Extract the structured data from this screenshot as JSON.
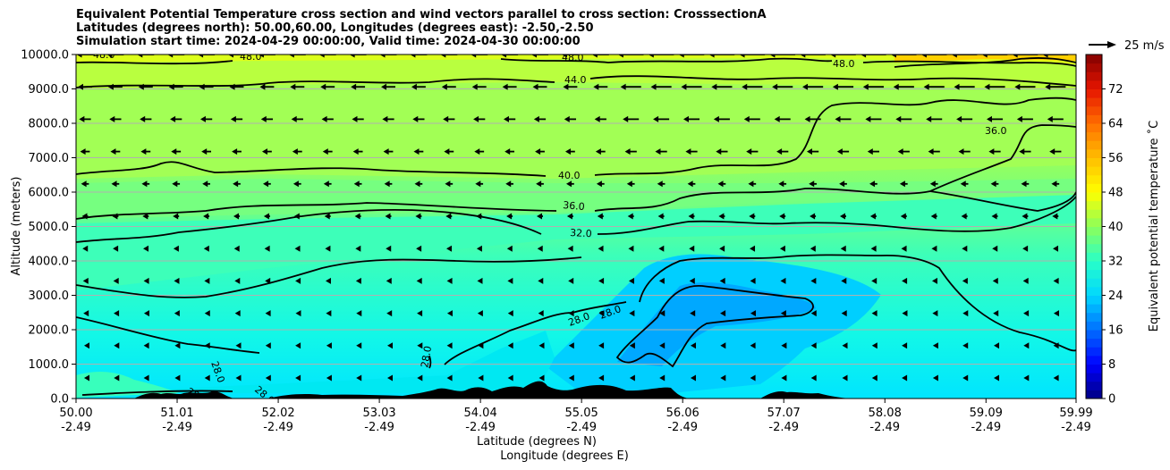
{
  "chart_data": {
    "type": "contour",
    "title_lines": [
      "Equivalent Potential Temperature cross section and wind vectors parallel to cross section: CrosssectionA",
      "Latitudes (degrees north): 50.00,60.00, Longitudes (degrees east): -2.50,-2.50",
      "Simulation start time: 2024-04-29 00:00:00, Valid time: 2024-04-30 00:00:00"
    ],
    "ylabel": "Altitude (meters)",
    "xlabel_lines": [
      "Latitude (degrees N)",
      "Longitude (degrees E)"
    ],
    "ylim": [
      0,
      10000
    ],
    "xlim": [
      50.0,
      59.99
    ],
    "y_ticks": [
      "0.0",
      "1000.0",
      "2000.0",
      "3000.0",
      "4000.0",
      "5000.0",
      "6000.0",
      "7000.0",
      "8000.0",
      "9000.0",
      "10000.0"
    ],
    "x_ticks": [
      {
        "lat": "50.00",
        "lon": "-2.49"
      },
      {
        "lat": "51.01",
        "lon": "-2.49"
      },
      {
        "lat": "52.02",
        "lon": "-2.49"
      },
      {
        "lat": "53.03",
        "lon": "-2.49"
      },
      {
        "lat": "54.04",
        "lon": "-2.49"
      },
      {
        "lat": "55.05",
        "lon": "-2.49"
      },
      {
        "lat": "56.06",
        "lon": "-2.49"
      },
      {
        "lat": "57.07",
        "lon": "-2.49"
      },
      {
        "lat": "58.08",
        "lon": "-2.49"
      },
      {
        "lat": "59.09",
        "lon": "-2.49"
      },
      {
        "lat": "59.99",
        "lon": "-2.49"
      }
    ],
    "grid": "horizontal",
    "colorbar": {
      "label": "Equivalent potential temperature ˚C",
      "min": 0,
      "max": 80,
      "tick_labels": [
        "0",
        "8",
        "16",
        "24",
        "32",
        "40",
        "48",
        "56",
        "64",
        "72"
      ]
    },
    "contour_labels": [
      "28.0",
      "32.0",
      "36.0",
      "40.0",
      "44.0",
      "48.0"
    ],
    "quiver_key": "25 m/s"
  }
}
